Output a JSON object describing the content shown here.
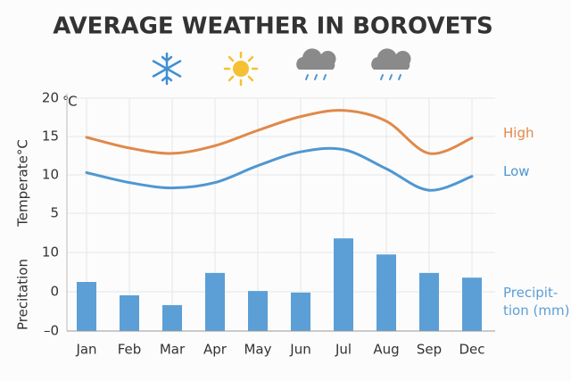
{
  "title": "AVERAGE WEATHER IN BOROVETS",
  "chart_data": [
    {
      "type": "line",
      "ylabel": "Temperate°C",
      "y_unit": "℃",
      "ylim": [
        0,
        20
      ],
      "yticks": [
        5,
        10,
        15,
        20
      ],
      "grid": true,
      "series": [
        {
          "name": "High",
          "color": "#e0894a",
          "values": [
            14.9,
            13.5,
            12.8,
            13.8,
            15.8,
            17.6,
            18.4,
            17.0,
            12.8,
            14.8
          ]
        },
        {
          "name": "Low",
          "color": "#4f97d1",
          "values": [
            10.3,
            9.0,
            8.3,
            9.0,
            11.2,
            13.0,
            13.3,
            10.8,
            8.0,
            9.8
          ]
        }
      ]
    },
    {
      "type": "bar",
      "ylabel": "Precitation",
      "categories": [
        "Jan",
        "Feb",
        "Mar",
        "Apr",
        "May",
        "Jun",
        "Jul",
        "Aug",
        "Sep",
        "Dec"
      ],
      "ylim": [
        -10,
        15
      ],
      "yticks": [
        {
          "value": 10,
          "label": "10"
        },
        0,
        {
          "value": -10,
          "label": "–0"
        }
      ],
      "grid": true,
      "series": [
        {
          "name": "Precipit-\ntion (mm)",
          "color": "#5b9fd6",
          "values": [
            2.5,
            -0.9,
            -3.4,
            4.8,
            0.2,
            -0.2,
            13.6,
            9.5,
            4.8,
            3.6
          ]
        }
      ]
    }
  ]
}
